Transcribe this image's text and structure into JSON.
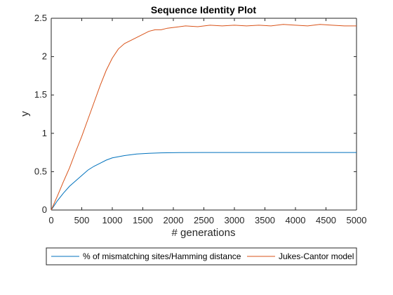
{
  "chart_data": {
    "type": "line",
    "title": "Sequence Identity Plot",
    "xlabel": "# generations",
    "ylabel": "y",
    "xlim": [
      0,
      5000
    ],
    "ylim": [
      0,
      2.5
    ],
    "xticks": [
      0,
      500,
      1000,
      1500,
      2000,
      2500,
      3000,
      3500,
      4000,
      4500,
      5000
    ],
    "yticks": [
      0,
      0.5,
      1,
      1.5,
      2,
      2.5
    ],
    "ytick_labels": [
      "0",
      "0.5",
      "1",
      "1.5",
      "2",
      "2.5"
    ],
    "grid": false,
    "legend_placement": "bottom (outside)",
    "series": [
      {
        "name": "% of mismatching sites/Hamming distance",
        "color": "#0072BD",
        "x": [
          0,
          50,
          100,
          150,
          200,
          300,
          400,
          500,
          600,
          700,
          800,
          900,
          1000,
          1200,
          1400,
          1600,
          1800,
          2000,
          2500,
          3000,
          3500,
          4000,
          4500,
          5000
        ],
        "values": [
          0,
          0.06,
          0.12,
          0.17,
          0.22,
          0.31,
          0.38,
          0.45,
          0.52,
          0.57,
          0.61,
          0.65,
          0.68,
          0.71,
          0.73,
          0.74,
          0.745,
          0.748,
          0.75,
          0.75,
          0.75,
          0.75,
          0.75,
          0.75
        ]
      },
      {
        "name": "Jukes-Cantor model",
        "color": "#D95319",
        "x": [
          0,
          100,
          200,
          300,
          400,
          500,
          600,
          700,
          800,
          900,
          1000,
          1100,
          1200,
          1300,
          1400,
          1500,
          1600,
          1700,
          1800,
          1900,
          2000,
          2200,
          2400,
          2600,
          2800,
          3000,
          3200,
          3400,
          3600,
          3800,
          4000,
          4200,
          4400,
          4600,
          4800,
          5000
        ],
        "values": [
          0,
          0.18,
          0.37,
          0.55,
          0.76,
          0.96,
          1.18,
          1.4,
          1.62,
          1.82,
          1.98,
          2.1,
          2.17,
          2.21,
          2.25,
          2.29,
          2.33,
          2.35,
          2.35,
          2.37,
          2.38,
          2.4,
          2.39,
          2.41,
          2.4,
          2.41,
          2.4,
          2.41,
          2.4,
          2.42,
          2.41,
          2.4,
          2.42,
          2.41,
          2.4,
          2.4
        ]
      }
    ]
  }
}
